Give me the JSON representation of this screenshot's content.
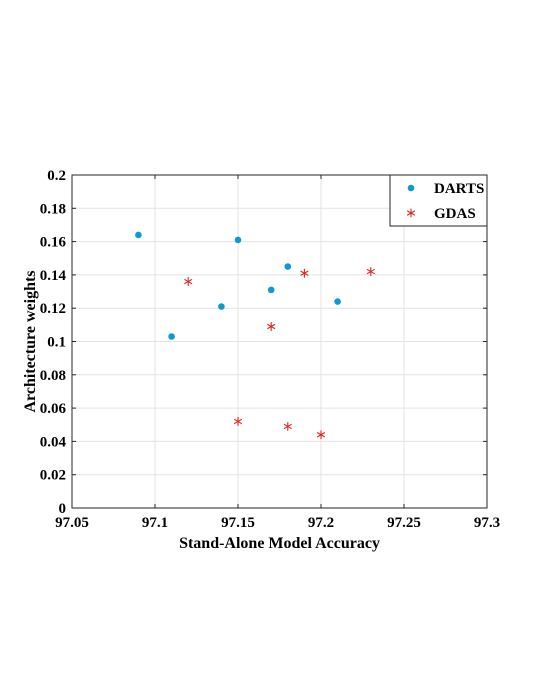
{
  "chart_data": {
    "type": "scatter",
    "xlabel": "Stand-Alone Model Accuracy",
    "ylabel": "Architecture weights",
    "xlim": [
      97.05,
      97.3
    ],
    "ylim": [
      0,
      0.2
    ],
    "xticks": [
      "97.05",
      "97.1",
      "97.15",
      "97.2",
      "97.25",
      "97.3"
    ],
    "yticks": [
      "0",
      "0.02",
      "0.04",
      "0.06",
      "0.08",
      "0.1",
      "0.12",
      "0.14",
      "0.16",
      "0.18",
      "0.2"
    ],
    "grid": true,
    "legend_position": "top-right",
    "series": [
      {
        "name": "DARTS",
        "marker": "dot",
        "color": "#0e9ad0",
        "points": [
          {
            "x": 97.09,
            "y": 0.164
          },
          {
            "x": 97.11,
            "y": 0.103
          },
          {
            "x": 97.14,
            "y": 0.121
          },
          {
            "x": 97.15,
            "y": 0.161
          },
          {
            "x": 97.17,
            "y": 0.131
          },
          {
            "x": 97.18,
            "y": 0.145
          },
          {
            "x": 97.21,
            "y": 0.124
          }
        ]
      },
      {
        "name": "GDAS",
        "marker": "asterisk",
        "color": "#e52222",
        "points": [
          {
            "x": 97.12,
            "y": 0.136
          },
          {
            "x": 97.15,
            "y": 0.052
          },
          {
            "x": 97.17,
            "y": 0.109
          },
          {
            "x": 97.18,
            "y": 0.049
          },
          {
            "x": 97.19,
            "y": 0.141
          },
          {
            "x": 97.2,
            "y": 0.044
          },
          {
            "x": 97.23,
            "y": 0.142
          }
        ]
      }
    ]
  }
}
